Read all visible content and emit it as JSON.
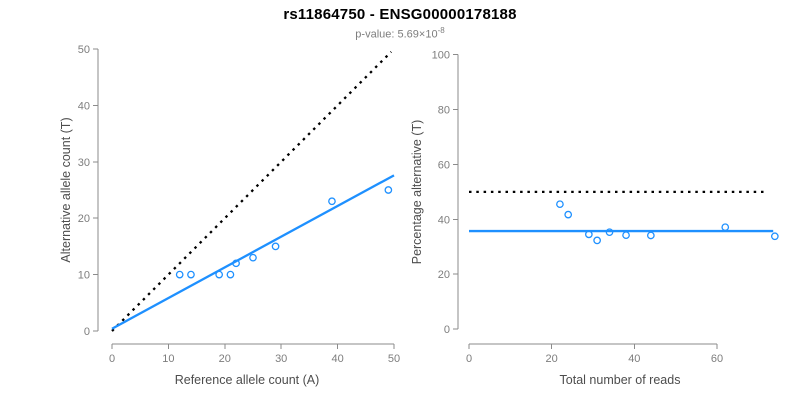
{
  "header": {
    "title": "rs11864750 - ENSG00000178188",
    "subtitle_base": "p-value: 5.69×10",
    "subtitle_exponent": "-8"
  },
  "accent_color": "#1E90FF",
  "chart_data": [
    {
      "name": "allele-count-scatter",
      "type": "scatter",
      "xlabel": "Reference allele count (A)",
      "ylabel": "Alternative allele count (T)",
      "xlim": [
        0,
        50
      ],
      "ylim": [
        0,
        50
      ],
      "xticks": [
        0,
        10,
        20,
        30,
        40,
        50
      ],
      "yticks": [
        0,
        10,
        20,
        30,
        40,
        50
      ],
      "grid": false,
      "point_style": "open-circle",
      "point_color": "#1E90FF",
      "points": [
        [
          12,
          10
        ],
        [
          14,
          10
        ],
        [
          19,
          10
        ],
        [
          21,
          10
        ],
        [
          22,
          12
        ],
        [
          25,
          13
        ],
        [
          29,
          15
        ],
        [
          39,
          23
        ],
        [
          49,
          25
        ]
      ],
      "lines": [
        {
          "name": "identity-line",
          "style": "dotted",
          "color": "#000000",
          "x1": 0,
          "y1": 0,
          "x2": 49.5,
          "y2": 49.5
        },
        {
          "name": "regression-line",
          "style": "solid",
          "color": "#1E90FF",
          "x1": 0,
          "y1": 0.4,
          "x2": 50,
          "y2": 27.6
        }
      ]
    },
    {
      "name": "percentage-alternative-scatter",
      "type": "scatter",
      "xlabel": "Total number of reads",
      "ylabel": "Percentage alternative (T)",
      "xlim": [
        0,
        75
      ],
      "ylim": [
        0,
        100
      ],
      "xticks": [
        0,
        20,
        40,
        60
      ],
      "yticks": [
        0,
        20,
        40,
        60,
        80,
        100
      ],
      "grid": false,
      "point_style": "open-circle",
      "point_color": "#1E90FF",
      "points": [
        [
          22,
          45.5
        ],
        [
          24,
          41.7
        ],
        [
          29,
          34.5
        ],
        [
          31,
          32.3
        ],
        [
          34,
          35.3
        ],
        [
          38,
          34.2
        ],
        [
          44,
          34.1
        ],
        [
          62,
          37.1
        ],
        [
          74,
          33.8
        ]
      ],
      "lines": [
        {
          "name": "expected-50pct-line",
          "style": "dotted",
          "color": "#000000",
          "x1": 0,
          "y1": 50,
          "x2": 72,
          "y2": 50
        },
        {
          "name": "mean-percentage-line",
          "style": "solid",
          "color": "#1E90FF",
          "x1": 0,
          "y1": 35.7,
          "x2": 73.6,
          "y2": 35.7
        }
      ]
    }
  ]
}
